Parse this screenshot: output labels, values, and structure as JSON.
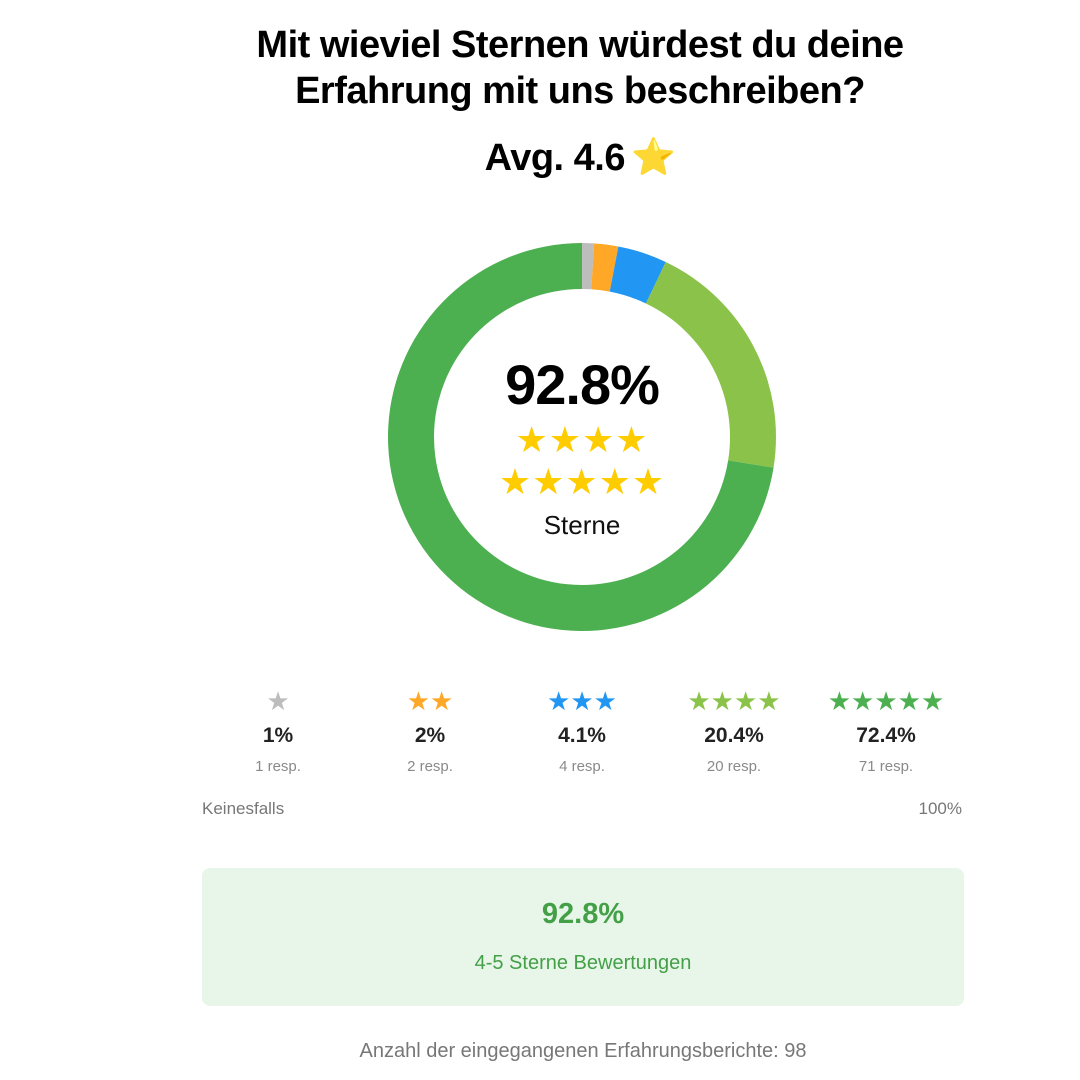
{
  "header": {
    "title_line1": "Mit wieviel Sternen würdest du deine",
    "title_line2": "Erfahrung mit uns beschreiben?",
    "avg_label": "Avg. 4.6",
    "avg_star": "⭐"
  },
  "center": {
    "percent": "92.8%",
    "stars_row1": "★★★★",
    "stars_row2": "★★★★★",
    "label": "Sterne"
  },
  "distribution": [
    {
      "stars": "★",
      "percent_label": "1%",
      "resp_label": "1 resp.",
      "color": "#BDBDBD"
    },
    {
      "stars": "★★",
      "percent_label": "2%",
      "resp_label": "2 resp.",
      "color": "#FFA726"
    },
    {
      "stars": "★★★",
      "percent_label": "4.1%",
      "resp_label": "4 resp.",
      "color": "#2196F3"
    },
    {
      "stars": "★★★★",
      "percent_label": "20.4%",
      "resp_label": "20 resp.",
      "color": "#8BC34A"
    },
    {
      "stars": "★★★★★",
      "percent_label": "72.4%",
      "resp_label": "71 resp.",
      "color": "#4CAF50"
    }
  ],
  "scale": {
    "low": "Keinesfalls",
    "high": "100%"
  },
  "summary": {
    "percent": "92.8%",
    "label": "4-5 Sterne Bewertungen"
  },
  "footer": {
    "text": "Anzahl der eingegangenen Erfahrungsberichte: 98"
  },
  "chart_data": {
    "type": "pie",
    "variant": "donut",
    "title": "Mit wieviel Sternen würdest du deine Erfahrung mit uns beschreiben?",
    "categories": [
      "1 Stern",
      "2 Sterne",
      "3 Sterne",
      "4 Sterne",
      "5 Sterne"
    ],
    "values": [
      1,
      2,
      4.1,
      20.4,
      72.4
    ],
    "counts": [
      1,
      2,
      4,
      20,
      71
    ],
    "colors": [
      "#BDBDBD",
      "#FFA726",
      "#2196F3",
      "#8BC34A",
      "#4CAF50"
    ],
    "total_responses": 98,
    "average": 4.6
  }
}
